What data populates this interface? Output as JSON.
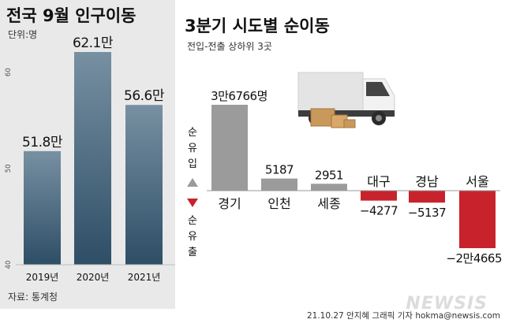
{
  "chart_data": [
    {
      "type": "bar",
      "title": "전국 9월 인구이동",
      "unit": "단위:명",
      "categories": [
        "2019년",
        "2020년",
        "2021년"
      ],
      "values": [
        51.8,
        62.1,
        56.6
      ],
      "value_labels": [
        "51.8만",
        "62.1만",
        "56.6만"
      ],
      "ylim": [
        40,
        65
      ],
      "y_ticks": [
        "40",
        "50",
        "60"
      ],
      "source": "자료: 통계청"
    },
    {
      "type": "bar",
      "title": "3분기 시도별 순이동",
      "subtitle": "전입-전출 상하위 3곳",
      "categories": [
        "경기",
        "인천",
        "세종",
        "대구",
        "경남",
        "서울"
      ],
      "values": [
        36766,
        5187,
        2951,
        -4277,
        -5137,
        -24665
      ],
      "value_labels": [
        "3만6766명",
        "5187",
        "2951",
        "−4277",
        "−5137",
        "−2만4665"
      ],
      "legend_in": "순유입",
      "legend_out": "순유출",
      "colors": {
        "positive": "#9b9b9b",
        "negative": "#c8232c"
      }
    }
  ],
  "footer": {
    "credit": "21.10.27 안지혜 그래픽 기자 hokma@newsis.com",
    "logo": "NEWSIS"
  },
  "colors": {
    "left_bar_top": "#6e8799",
    "left_bar_bottom": "#2f4f66",
    "panel_bg": "#e9e9ea"
  }
}
